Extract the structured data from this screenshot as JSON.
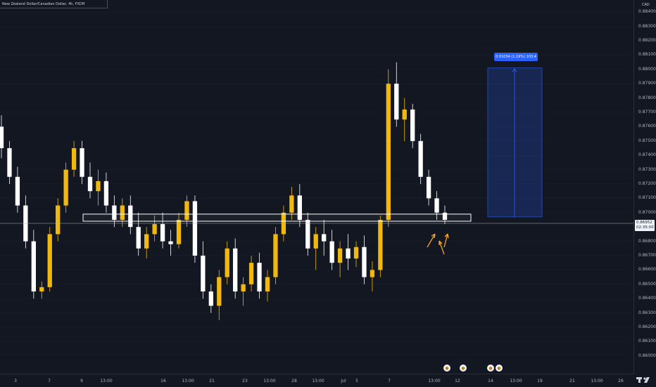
{
  "header": {
    "symbol_legend": "New Zealand Dollar/Canadian Dollar, 4h, FXCM",
    "currency": "CAD"
  },
  "price_axis": {
    "labels": [
      "0.88400",
      "0.88300",
      "0.88200",
      "0.88100",
      "0.88000",
      "0.87900",
      "0.87800",
      "0.87700",
      "0.87600",
      "0.87500",
      "0.87400",
      "0.87300",
      "0.87200",
      "0.87100",
      "0.87000",
      "0.86800",
      "0.86700",
      "0.86600",
      "0.86500",
      "0.86400",
      "0.86300",
      "0.86200",
      "0.86100",
      "0.86000"
    ]
  },
  "current_price": {
    "value": "0.86952",
    "countdown": "02:35:00"
  },
  "time_axis": {
    "labels": [
      "3",
      "7",
      "9",
      "13:00",
      "16",
      "13:00",
      "21",
      "23",
      "13:00",
      "28",
      "13:00",
      "Jul",
      "5",
      "7",
      "13:00",
      "12",
      "14",
      "13:00",
      "19",
      "21",
      "13:00",
      "26"
    ]
  },
  "measure_tool": {
    "label": "0.01034 (1.19%) 103.4"
  },
  "events": [
    "event-icon",
    "event-icon",
    "event-icon",
    "event-icon"
  ],
  "colors": {
    "background": "#131722",
    "bull": "#f0b90b",
    "bear": "#ffffff",
    "measure": "#2962ff",
    "arrows": "#f5a623"
  },
  "chart_data": {
    "type": "candlestick",
    "symbol": "New Zealand Dollar/Canadian Dollar",
    "interval": "4h",
    "y_axis_labels": [
      "0.88400",
      "0.88300",
      "0.88200",
      "0.88100",
      "0.88000",
      "0.87900",
      "0.87800",
      "0.87700",
      "0.87600",
      "0.87500",
      "0.87400",
      "0.87300",
      "0.87200",
      "0.87100",
      "0.87000",
      "0.86800",
      "0.86700",
      "0.86600",
      "0.86500",
      "0.86400",
      "0.86300",
      "0.86200",
      "0.86100",
      "0.86000"
    ],
    "ylim": [
      0.8594,
      0.8845
    ],
    "support_zone": [
      0.8695,
      0.8698
    ],
    "measure_range": {
      "from": 0.8697,
      "to": 0.8801
    },
    "candles": [
      [
        0.876,
        0.8768,
        0.8738,
        0.8745
      ],
      [
        0.8745,
        0.875,
        0.872,
        0.8725
      ],
      [
        0.8725,
        0.8732,
        0.87,
        0.8705
      ],
      [
        0.8705,
        0.8712,
        0.8675,
        0.868
      ],
      [
        0.868,
        0.8688,
        0.864,
        0.8645
      ],
      [
        0.8645,
        0.8652,
        0.864,
        0.8648
      ],
      [
        0.8648,
        0.869,
        0.8645,
        0.8685
      ],
      [
        0.8685,
        0.871,
        0.868,
        0.8705
      ],
      [
        0.8705,
        0.8735,
        0.87,
        0.873
      ],
      [
        0.873,
        0.875,
        0.8725,
        0.8745
      ],
      [
        0.8745,
        0.875,
        0.872,
        0.8725
      ],
      [
        0.8725,
        0.8735,
        0.871,
        0.8715
      ],
      [
        0.8715,
        0.873,
        0.8705,
        0.8722
      ],
      [
        0.8722,
        0.8728,
        0.87,
        0.8705
      ],
      [
        0.8705,
        0.8712,
        0.869,
        0.8695
      ],
      [
        0.8695,
        0.871,
        0.869,
        0.8705
      ],
      [
        0.8705,
        0.8712,
        0.8685,
        0.869
      ],
      [
        0.869,
        0.87,
        0.867,
        0.8675
      ],
      [
        0.8675,
        0.869,
        0.8668,
        0.8685
      ],
      [
        0.8685,
        0.8698,
        0.868,
        0.8692
      ],
      [
        0.8692,
        0.87,
        0.8675,
        0.868
      ],
      [
        0.868,
        0.8688,
        0.867,
        0.8678
      ],
      [
        0.8678,
        0.87,
        0.8675,
        0.8695
      ],
      [
        0.8695,
        0.8712,
        0.869,
        0.8708
      ],
      [
        0.8708,
        0.8712,
        0.8665,
        0.867
      ],
      [
        0.867,
        0.868,
        0.864,
        0.8645
      ],
      [
        0.8645,
        0.865,
        0.863,
        0.8635
      ],
      [
        0.8635,
        0.866,
        0.8625,
        0.8655
      ],
      [
        0.8655,
        0.868,
        0.865,
        0.8675
      ],
      [
        0.8675,
        0.8682,
        0.864,
        0.8645
      ],
      [
        0.8645,
        0.8655,
        0.8635,
        0.865
      ],
      [
        0.865,
        0.867,
        0.8645,
        0.8665
      ],
      [
        0.8665,
        0.8672,
        0.864,
        0.8645
      ],
      [
        0.8645,
        0.866,
        0.8638,
        0.8655
      ],
      [
        0.8655,
        0.869,
        0.865,
        0.8685
      ],
      [
        0.8685,
        0.8705,
        0.868,
        0.87
      ],
      [
        0.87,
        0.8718,
        0.8695,
        0.8712
      ],
      [
        0.8712,
        0.872,
        0.869,
        0.8695
      ],
      [
        0.8695,
        0.87,
        0.867,
        0.8675
      ],
      [
        0.8675,
        0.869,
        0.866,
        0.8685
      ],
      [
        0.8685,
        0.8695,
        0.867,
        0.868
      ],
      [
        0.868,
        0.8688,
        0.866,
        0.8665
      ],
      [
        0.8665,
        0.868,
        0.8655,
        0.8675
      ],
      [
        0.8675,
        0.8685,
        0.866,
        0.8668
      ],
      [
        0.8668,
        0.868,
        0.8662,
        0.8676
      ],
      [
        0.8676,
        0.8684,
        0.865,
        0.8655
      ],
      [
        0.8655,
        0.8666,
        0.8645,
        0.866
      ],
      [
        0.866,
        0.8698,
        0.8655,
        0.8695
      ],
      [
        0.8695,
        0.88,
        0.869,
        0.879
      ],
      [
        0.879,
        0.8805,
        0.876,
        0.8765
      ],
      [
        0.8765,
        0.878,
        0.875,
        0.8772
      ],
      [
        0.8772,
        0.8776,
        0.8745,
        0.875
      ],
      [
        0.875,
        0.8755,
        0.872,
        0.8725
      ],
      [
        0.8725,
        0.873,
        0.8705,
        0.871
      ],
      [
        0.871,
        0.8715,
        0.8695,
        0.87
      ],
      [
        0.87,
        0.8705,
        0.8692,
        0.8695
      ]
    ]
  }
}
